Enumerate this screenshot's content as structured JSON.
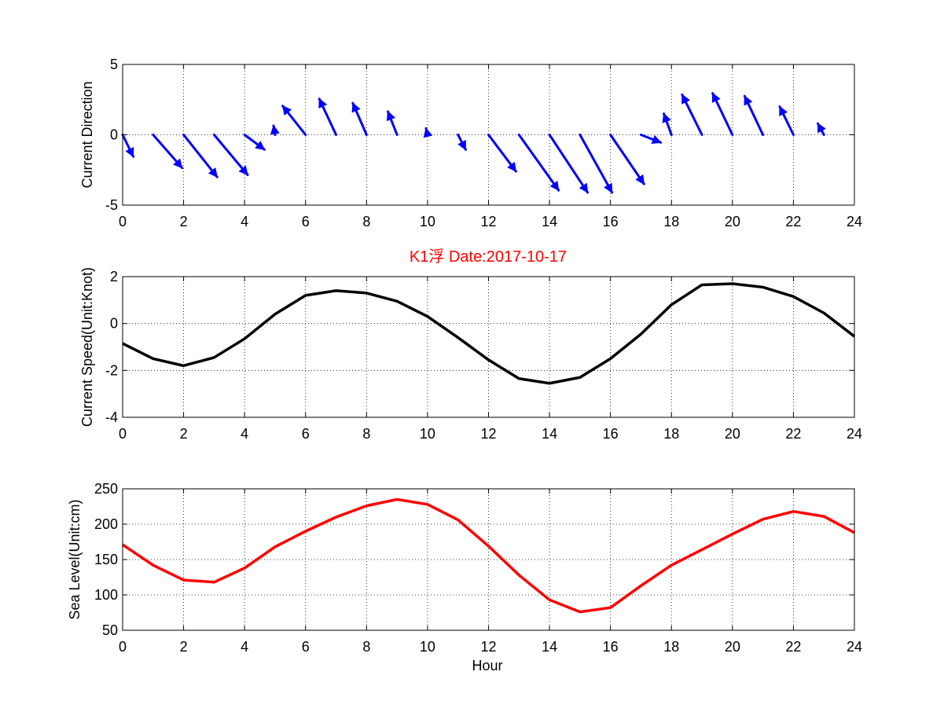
{
  "chart_data": [
    {
      "type": "quiver",
      "panel": "direction",
      "title": "",
      "xlabel": "",
      "ylabel": "Current Direction",
      "xlim": [
        0,
        24
      ],
      "ylim": [
        -5,
        5
      ],
      "xticks": [
        "0",
        "2",
        "4",
        "6",
        "8",
        "10",
        "12",
        "14",
        "16",
        "18",
        "20",
        "22",
        "24"
      ],
      "yticks": [
        "-5",
        "0",
        "5"
      ],
      "grid": true,
      "color": "#0000ff",
      "x": [
        0,
        1,
        2,
        3,
        4,
        5,
        6,
        7,
        8,
        9,
        10,
        11,
        12,
        13,
        14,
        15,
        16,
        17,
        18,
        19,
        20,
        21,
        22,
        23
      ],
      "u": [
        0.35,
        0.95,
        1.1,
        1.1,
        0.65,
        -0.05,
        -0.75,
        -0.55,
        -0.45,
        -0.3,
        -0.05,
        0.25,
        0.9,
        1.3,
        1.25,
        1.05,
        1.1,
        0.65,
        -0.25,
        -0.65,
        -0.65,
        -0.6,
        -0.45,
        -0.2
      ],
      "v": [
        -1.55,
        -2.35,
        -3.0,
        -2.85,
        -1.05,
        0.65,
        2.05,
        2.55,
        2.25,
        1.65,
        0.45,
        -1.05,
        -2.6,
        -3.95,
        -4.1,
        -4.1,
        -3.5,
        -0.55,
        1.5,
        2.85,
        2.95,
        2.75,
        2.0,
        0.8
      ]
    },
    {
      "type": "line",
      "panel": "speed",
      "title": "K1浮    Date:2017-10-17",
      "xlabel": "",
      "ylabel": "Current Speed(Unit:Knot)",
      "xlim": [
        0,
        24
      ],
      "ylim": [
        -4,
        2
      ],
      "xticks": [
        "0",
        "2",
        "4",
        "6",
        "8",
        "10",
        "12",
        "14",
        "16",
        "18",
        "20",
        "22",
        "24"
      ],
      "yticks": [
        "-4",
        "-2",
        "0",
        "2"
      ],
      "grid": true,
      "color": "#000000",
      "x": [
        0,
        1,
        2,
        3,
        4,
        5,
        6,
        7,
        8,
        9,
        10,
        11,
        12,
        13,
        14,
        15,
        16,
        17,
        18,
        19,
        20,
        21,
        22,
        23,
        24
      ],
      "y": [
        -0.85,
        -1.5,
        -1.8,
        -1.45,
        -0.65,
        0.4,
        1.2,
        1.4,
        1.3,
        0.95,
        0.3,
        -0.6,
        -1.55,
        -2.35,
        -2.55,
        -2.3,
        -1.5,
        -0.45,
        0.8,
        1.65,
        1.7,
        1.55,
        1.15,
        0.45,
        -0.55
      ]
    },
    {
      "type": "line",
      "panel": "sea-level",
      "title": "",
      "xlabel": "Hour",
      "ylabel": "Sea Level(Unit:cm)",
      "xlim": [
        0,
        24
      ],
      "ylim": [
        50,
        250
      ],
      "xticks": [
        "0",
        "2",
        "4",
        "6",
        "8",
        "10",
        "12",
        "14",
        "16",
        "18",
        "20",
        "22",
        "24"
      ],
      "yticks": [
        "50",
        "100",
        "150",
        "200",
        "250"
      ],
      "grid": true,
      "color": "#ff0000",
      "x": [
        0,
        1,
        2,
        3,
        4,
        5,
        6,
        7,
        8,
        9,
        10,
        11,
        12,
        13,
        14,
        15,
        16,
        17,
        18,
        19,
        20,
        21,
        22,
        23,
        24
      ],
      "y": [
        171,
        142,
        121,
        118,
        138,
        168,
        190,
        210,
        226,
        235,
        228,
        206,
        169,
        128,
        93,
        76,
        82,
        113,
        142,
        164,
        186,
        207,
        218,
        211,
        188
      ]
    }
  ]
}
